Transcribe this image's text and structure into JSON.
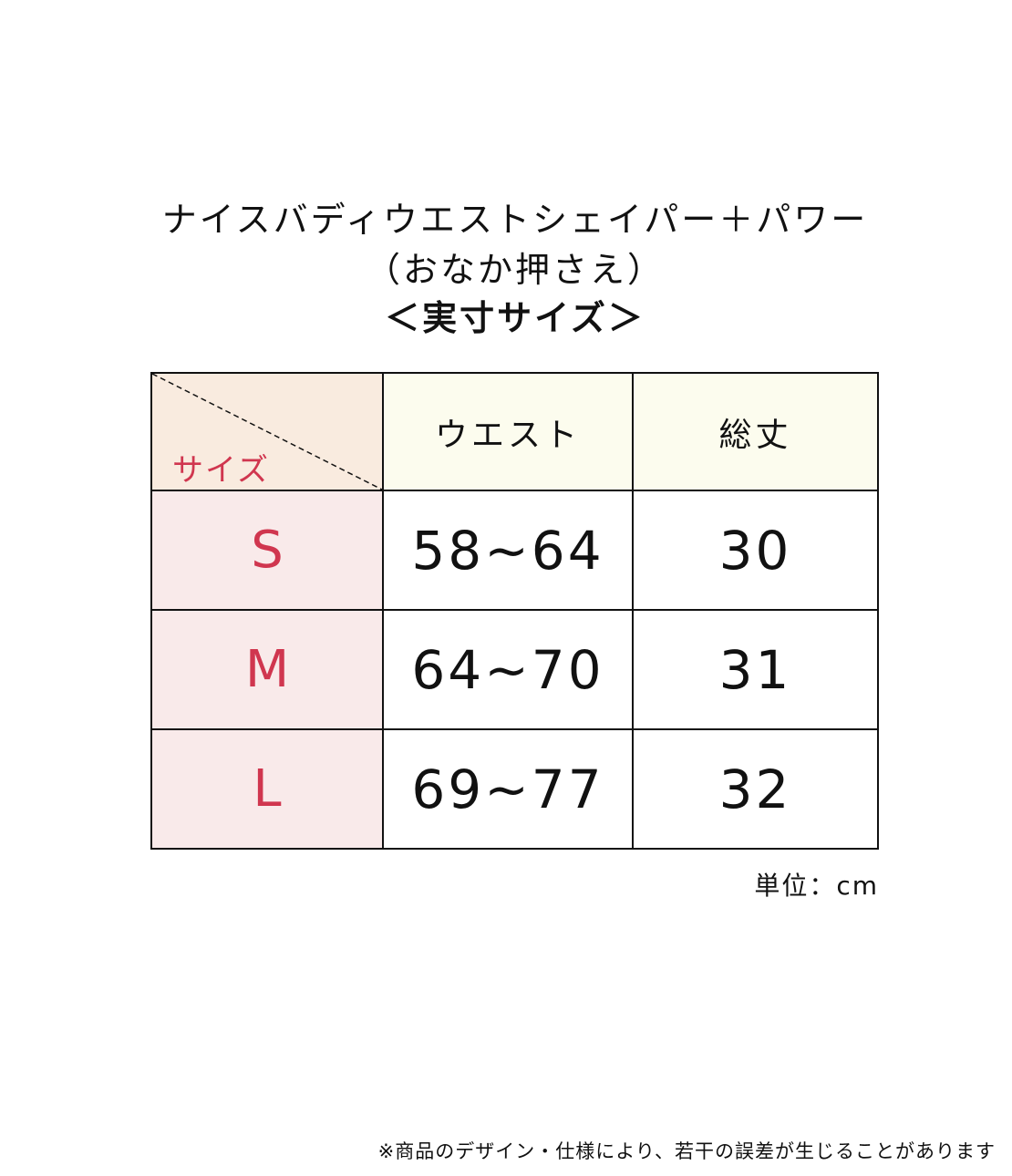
{
  "title": {
    "line1": "ナイスバディウエストシェイパー＋パワー",
    "line2": "（おなか押さえ）",
    "line3": "＜実寸サイズ＞"
  },
  "table": {
    "corner_label": "サイズ",
    "headers": [
      "ウエスト",
      "総丈"
    ],
    "rows": [
      {
        "size": "S",
        "waist": "58~64",
        "length": "30"
      },
      {
        "size": "M",
        "waist": "64~70",
        "length": "31"
      },
      {
        "size": "L",
        "waist": "69~77",
        "length": "32"
      }
    ]
  },
  "unit": "単位：cm",
  "note": "※商品のデザイン・仕様により、若干の誤差が生じることがあります",
  "colors": {
    "accent": "#d0364f",
    "corner_bg": "#f9ebdf",
    "header_bg": "#fcfcee",
    "size_bg": "#f9eaea"
  }
}
